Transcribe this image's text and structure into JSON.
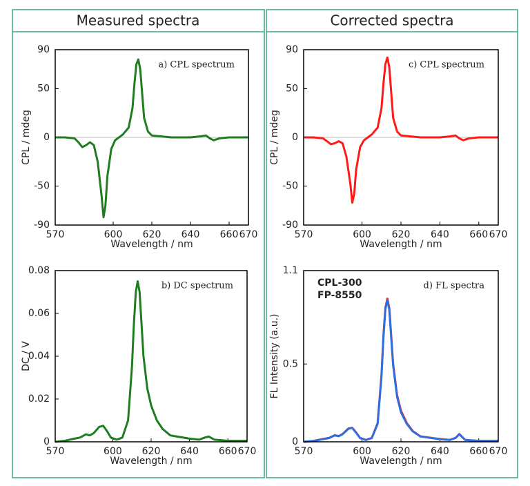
{
  "panels": [
    {
      "title": "Measured spectra"
    },
    {
      "title": "Corrected spectra"
    }
  ],
  "chart_data": [
    {
      "type": "line",
      "annotation": "a) CPL spectrum",
      "xlabel": "Wavelength / nm",
      "ylabel": "CPL / mdeg",
      "color": "#1e7d1e",
      "x": [
        570,
        575,
        580,
        582,
        584,
        586,
        588,
        590,
        592,
        594,
        595,
        596,
        597,
        599,
        601,
        603,
        605,
        608,
        610,
        611,
        612,
        613,
        614,
        615,
        616,
        618,
        620,
        625,
        630,
        640,
        645,
        648,
        650,
        652,
        655,
        660,
        670
      ],
      "values": [
        0,
        0,
        -1,
        -5,
        -10,
        -8,
        -5,
        -8,
        -25,
        -60,
        -82,
        -70,
        -40,
        -12,
        -3,
        0,
        3,
        10,
        30,
        55,
        75,
        80,
        70,
        45,
        20,
        6,
        2,
        1,
        0,
        0,
        1,
        2,
        -1,
        -3,
        -1,
        0,
        0
      ],
      "xlim": [
        570,
        670
      ],
      "xticks": [
        570,
        600,
        620,
        640,
        660,
        670
      ],
      "ylim": [
        -90,
        90
      ],
      "yticks": [
        -90,
        -50,
        0,
        50,
        90
      ],
      "zero_line": true
    },
    {
      "type": "line",
      "annotation": "b) DC spectrum",
      "xlabel": "Wavelength / nm",
      "ylabel": "DC / V",
      "color": "#1e7d1e",
      "x": [
        570,
        575,
        580,
        583,
        586,
        588,
        590,
        593,
        595,
        597,
        599,
        602,
        605,
        608,
        610,
        611,
        612,
        613,
        614,
        615,
        616,
        618,
        620,
        623,
        626,
        630,
        640,
        645,
        648,
        650,
        653,
        660,
        670
      ],
      "values": [
        0,
        0.0005,
        0.0015,
        0.002,
        0.0035,
        0.003,
        0.004,
        0.007,
        0.0075,
        0.005,
        0.002,
        0.001,
        0.002,
        0.01,
        0.035,
        0.055,
        0.07,
        0.075,
        0.07,
        0.055,
        0.04,
        0.025,
        0.017,
        0.01,
        0.006,
        0.003,
        0.0015,
        0.001,
        0.002,
        0.0025,
        0.001,
        0.0005,
        0.0005
      ],
      "xlim": [
        570,
        670
      ],
      "xticks": [
        570,
        600,
        620,
        640,
        660,
        670
      ],
      "ylim": [
        0,
        0.08
      ],
      "yticks": [
        0,
        0.02,
        0.04,
        0.06,
        0.08
      ],
      "zero_line": false
    },
    {
      "type": "line",
      "annotation": "c) CPL spectrum",
      "xlabel": "Wavelength / nm",
      "ylabel": "CPL / mdeg",
      "color": "#ff1a1a",
      "x": [
        570,
        575,
        580,
        582,
        584,
        586,
        588,
        590,
        592,
        594,
        595,
        596,
        597,
        599,
        601,
        603,
        605,
        608,
        610,
        611,
        612,
        613,
        614,
        615,
        616,
        618,
        620,
        625,
        630,
        640,
        645,
        648,
        650,
        652,
        655,
        660,
        670
      ],
      "values": [
        0,
        0,
        -1,
        -4,
        -7,
        -6,
        -4,
        -6,
        -20,
        -48,
        -67,
        -58,
        -33,
        -10,
        -3,
        0,
        3,
        10,
        30,
        55,
        75,
        82,
        72,
        46,
        20,
        6,
        2,
        1,
        0,
        0,
        1,
        2,
        -1,
        -3,
        -1,
        0,
        0
      ],
      "xlim": [
        570,
        670
      ],
      "xticks": [
        570,
        600,
        620,
        640,
        660,
        670
      ],
      "ylim": [
        -90,
        90
      ],
      "yticks": [
        -90,
        -50,
        0,
        50,
        90
      ],
      "zero_line": true
    },
    {
      "type": "line",
      "annotation": "d) FL spectra",
      "xlabel": "Wavelength / nm",
      "ylabel": "FL Intensity (a.u.)",
      "x": [
        570,
        575,
        580,
        583,
        586,
        588,
        590,
        593,
        595,
        597,
        599,
        602,
        605,
        608,
        610,
        611,
        612,
        613,
        614,
        615,
        616,
        618,
        620,
        623,
        626,
        630,
        640,
        645,
        648,
        650,
        653,
        660,
        670
      ],
      "series": [
        {
          "name": "CPL-300",
          "color": "#ff1a1a",
          "values": [
            0,
            0.006,
            0.018,
            0.025,
            0.043,
            0.037,
            0.05,
            0.086,
            0.09,
            0.06,
            0.025,
            0.012,
            0.025,
            0.12,
            0.43,
            0.68,
            0.86,
            0.92,
            0.86,
            0.68,
            0.5,
            0.3,
            0.2,
            0.12,
            0.07,
            0.035,
            0.018,
            0.012,
            0.025,
            0.05,
            0.012,
            0.006,
            0.006
          ]
        },
        {
          "name": "FP-8550",
          "color": "#2e6fe0",
          "values": [
            0,
            0.005,
            0.017,
            0.024,
            0.041,
            0.036,
            0.049,
            0.084,
            0.089,
            0.058,
            0.024,
            0.012,
            0.024,
            0.115,
            0.42,
            0.67,
            0.85,
            0.91,
            0.85,
            0.67,
            0.49,
            0.29,
            0.19,
            0.115,
            0.068,
            0.034,
            0.017,
            0.012,
            0.024,
            0.048,
            0.012,
            0.006,
            0.006
          ]
        }
      ],
      "xlim": [
        570,
        670
      ],
      "xticks": [
        570,
        600,
        620,
        640,
        660,
        670
      ],
      "ylim": [
        0,
        1.1
      ],
      "yticks": [
        0,
        0.5,
        1.1
      ],
      "zero_line": false
    }
  ]
}
